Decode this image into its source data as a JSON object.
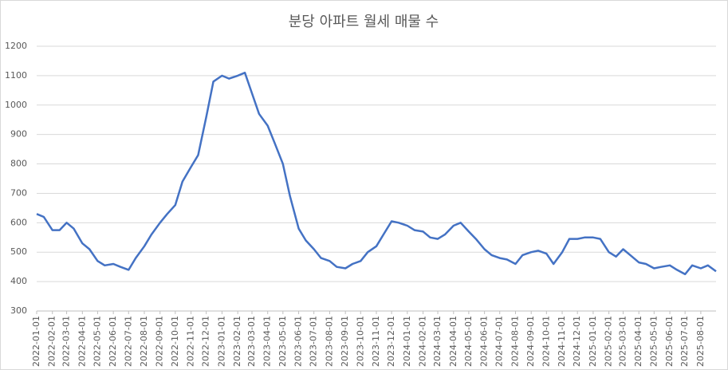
{
  "chart_data": {
    "type": "line",
    "title": "분당 아파트 월세 매물 수",
    "x": [
      "2022-01-01",
      "2022-01-15",
      "2022-02-01",
      "2022-02-15",
      "2022-03-01",
      "2022-03-15",
      "2022-04-01",
      "2022-04-15",
      "2022-05-01",
      "2022-05-15",
      "2022-06-01",
      "2022-06-15",
      "2022-07-01",
      "2022-07-15",
      "2022-08-01",
      "2022-08-15",
      "2022-09-01",
      "2022-09-15",
      "2022-10-01",
      "2022-10-15",
      "2022-11-01",
      "2022-11-15",
      "2022-12-01",
      "2022-12-15",
      "2023-01-01",
      "2023-01-15",
      "2023-02-01",
      "2023-02-15",
      "2023-03-01",
      "2023-03-15",
      "2023-04-01",
      "2023-04-15",
      "2023-05-01",
      "2023-05-15",
      "2023-06-01",
      "2023-06-15",
      "2023-07-01",
      "2023-07-15",
      "2023-08-01",
      "2023-08-15",
      "2023-09-01",
      "2023-09-15",
      "2023-10-01",
      "2023-10-15",
      "2023-11-01",
      "2023-11-15",
      "2023-12-01",
      "2023-12-15",
      "2024-01-01",
      "2024-01-15",
      "2024-02-01",
      "2024-02-15",
      "2024-03-01",
      "2024-03-15",
      "2024-04-01",
      "2024-04-15",
      "2024-05-01",
      "2024-05-15",
      "2024-06-01",
      "2024-06-15",
      "2024-07-01",
      "2024-07-15",
      "2024-08-01",
      "2024-08-15",
      "2024-09-01",
      "2024-09-15",
      "2024-10-01",
      "2024-10-15",
      "2024-11-01",
      "2024-11-15",
      "2024-12-01",
      "2024-12-15",
      "2025-01-01",
      "2025-01-15",
      "2025-02-01",
      "2025-02-15",
      "2025-03-01",
      "2025-03-15",
      "2025-04-01",
      "2025-04-15",
      "2025-05-01",
      "2025-05-15",
      "2025-06-01",
      "2025-06-15",
      "2025-07-01",
      "2025-07-15",
      "2025-08-01",
      "2025-08-15",
      "2025-08-31"
    ],
    "series": [
      {
        "name": "매물 수",
        "color": "#4472c4",
        "values": [
          630,
          620,
          575,
          575,
          600,
          580,
          530,
          510,
          470,
          455,
          460,
          450,
          440,
          480,
          520,
          560,
          600,
          630,
          660,
          740,
          790,
          830,
          960,
          1080,
          1100,
          1090,
          1100,
          1110,
          1040,
          970,
          930,
          870,
          800,
          690,
          580,
          540,
          510,
          480,
          470,
          450,
          445,
          460,
          470,
          500,
          520,
          560,
          605,
          600,
          590,
          575,
          570,
          550,
          545,
          560,
          590,
          600,
          570,
          545,
          510,
          490,
          480,
          475,
          460,
          490,
          500,
          505,
          495,
          460,
          500,
          545,
          545,
          550,
          550,
          545,
          500,
          485,
          510,
          490,
          465,
          460,
          445,
          450,
          455,
          440,
          425,
          455,
          445,
          455,
          435
        ]
      }
    ],
    "xlim": [
      "2022-01-01",
      "2025-08-31"
    ],
    "xticks": [
      "2022-01-01",
      "2022-02-01",
      "2022-03-01",
      "2022-04-01",
      "2022-05-01",
      "2022-06-01",
      "2022-07-01",
      "2022-08-01",
      "2022-09-01",
      "2022-10-01",
      "2022-11-01",
      "2022-12-01",
      "2023-01-01",
      "2023-02-01",
      "2023-03-01",
      "2023-04-01",
      "2023-05-01",
      "2023-06-01",
      "2023-07-01",
      "2023-08-01",
      "2023-09-01",
      "2023-10-01",
      "2023-11-01",
      "2023-12-01",
      "2024-01-01",
      "2024-02-01",
      "2024-03-01",
      "2024-04-01",
      "2024-05-01",
      "2024-06-01",
      "2024-07-01",
      "2024-08-01",
      "2024-09-01",
      "2024-10-01",
      "2024-11-01",
      "2024-12-01",
      "2025-01-01",
      "2025-02-01",
      "2025-03-01",
      "2025-04-01",
      "2025-05-01",
      "2025-06-01",
      "2025-07-01",
      "2025-08-01"
    ],
    "ylim": [
      300,
      1200
    ],
    "yticks": [
      300,
      400,
      500,
      600,
      700,
      800,
      900,
      1000,
      1100,
      1200
    ],
    "grid": true
  }
}
